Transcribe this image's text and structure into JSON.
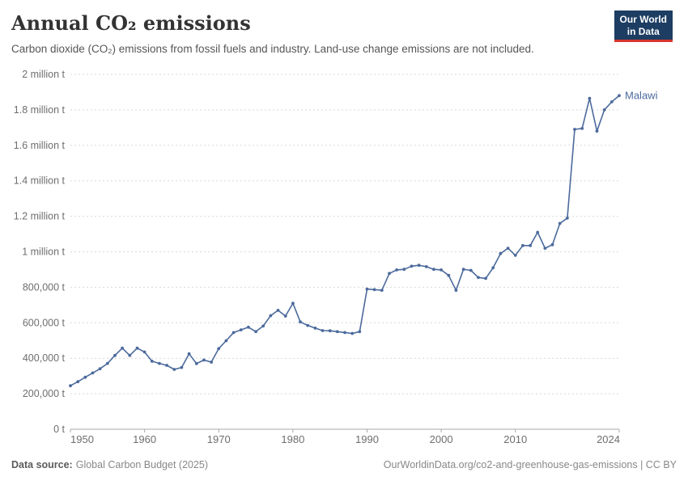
{
  "header": {
    "title": "Annual CO₂ emissions",
    "subtitle": "Carbon dioxide (CO₂) emissions from fossil fuels and industry. Land-use change emissions are not included.",
    "logo": {
      "line1": "Our World",
      "line2": "in Data",
      "bg_color": "#1d3d63",
      "accent_color": "#d8352e"
    }
  },
  "chart_data": {
    "type": "line",
    "title": "Annual CO₂ emissions",
    "xlabel": "",
    "ylabel": "",
    "xlim": [
      1950,
      2024
    ],
    "ylim": [
      0,
      2000000
    ],
    "grid": "horizontal-dashed",
    "legend_position": "end-of-line-label",
    "x_ticks": [
      1950,
      1960,
      1970,
      1980,
      1990,
      2000,
      2010,
      2024
    ],
    "y_ticks": [
      {
        "value": 0,
        "label": "0 t"
      },
      {
        "value": 200000,
        "label": "200,000 t"
      },
      {
        "value": 400000,
        "label": "400,000 t"
      },
      {
        "value": 600000,
        "label": "600,000 t"
      },
      {
        "value": 800000,
        "label": "800,000 t"
      },
      {
        "value": 1000000,
        "label": "1 million t"
      },
      {
        "value": 1200000,
        "label": "1.2 million t"
      },
      {
        "value": 1400000,
        "label": "1.4 million t"
      },
      {
        "value": 1600000,
        "label": "1.6 million t"
      },
      {
        "value": 1800000,
        "label": "1.8 million t"
      },
      {
        "value": 2000000,
        "label": "2 million t"
      }
    ],
    "series": [
      {
        "name": "Malawi",
        "color": "#4c6a9c",
        "years": [
          1950,
          1951,
          1952,
          1953,
          1954,
          1955,
          1956,
          1957,
          1958,
          1959,
          1960,
          1961,
          1962,
          1963,
          1964,
          1965,
          1966,
          1967,
          1968,
          1969,
          1970,
          1971,
          1972,
          1973,
          1974,
          1975,
          1976,
          1977,
          1978,
          1979,
          1980,
          1981,
          1982,
          1983,
          1984,
          1985,
          1986,
          1987,
          1988,
          1989,
          1990,
          1991,
          1992,
          1993,
          1994,
          1995,
          1996,
          1997,
          1998,
          1999,
          2000,
          2001,
          2002,
          2003,
          2004,
          2005,
          2006,
          2007,
          2008,
          2009,
          2010,
          2011,
          2012,
          2013,
          2014,
          2015,
          2016,
          2017,
          2018,
          2019,
          2020,
          2021,
          2022,
          2023,
          2024
        ],
        "values": [
          245000,
          268000,
          293000,
          317000,
          341000,
          371000,
          416000,
          457000,
          416000,
          457000,
          435000,
          383000,
          371000,
          360000,
          337000,
          348000,
          425000,
          370000,
          390000,
          378000,
          454000,
          499000,
          545000,
          560000,
          575000,
          550000,
          582000,
          640000,
          670000,
          638000,
          710000,
          605000,
          585000,
          570000,
          556000,
          555000,
          550000,
          545000,
          540000,
          550000,
          790000,
          787000,
          783000,
          878000,
          898000,
          901000,
          919000,
          924000,
          916000,
          901000,
          898000,
          867000,
          783000,
          901000,
          895000,
          855000,
          850000,
          910000,
          990000,
          1020000,
          980000,
          1035000,
          1035000,
          1110000,
          1020000,
          1040000,
          1160000,
          1190000,
          1690000,
          1695000,
          1865000,
          1680000,
          1800000,
          1845000,
          1880000
        ]
      }
    ],
    "colors": {
      "gridline": "#d9d9d9",
      "axis": "#a8a8a8",
      "tick_label": "#6e6e6e"
    }
  },
  "footer": {
    "source_label": "Data source:",
    "source_value": "Global Carbon Budget (2025)",
    "credit": "OurWorldinData.org/co2-and-greenhouse-gas-emissions | CC BY"
  }
}
